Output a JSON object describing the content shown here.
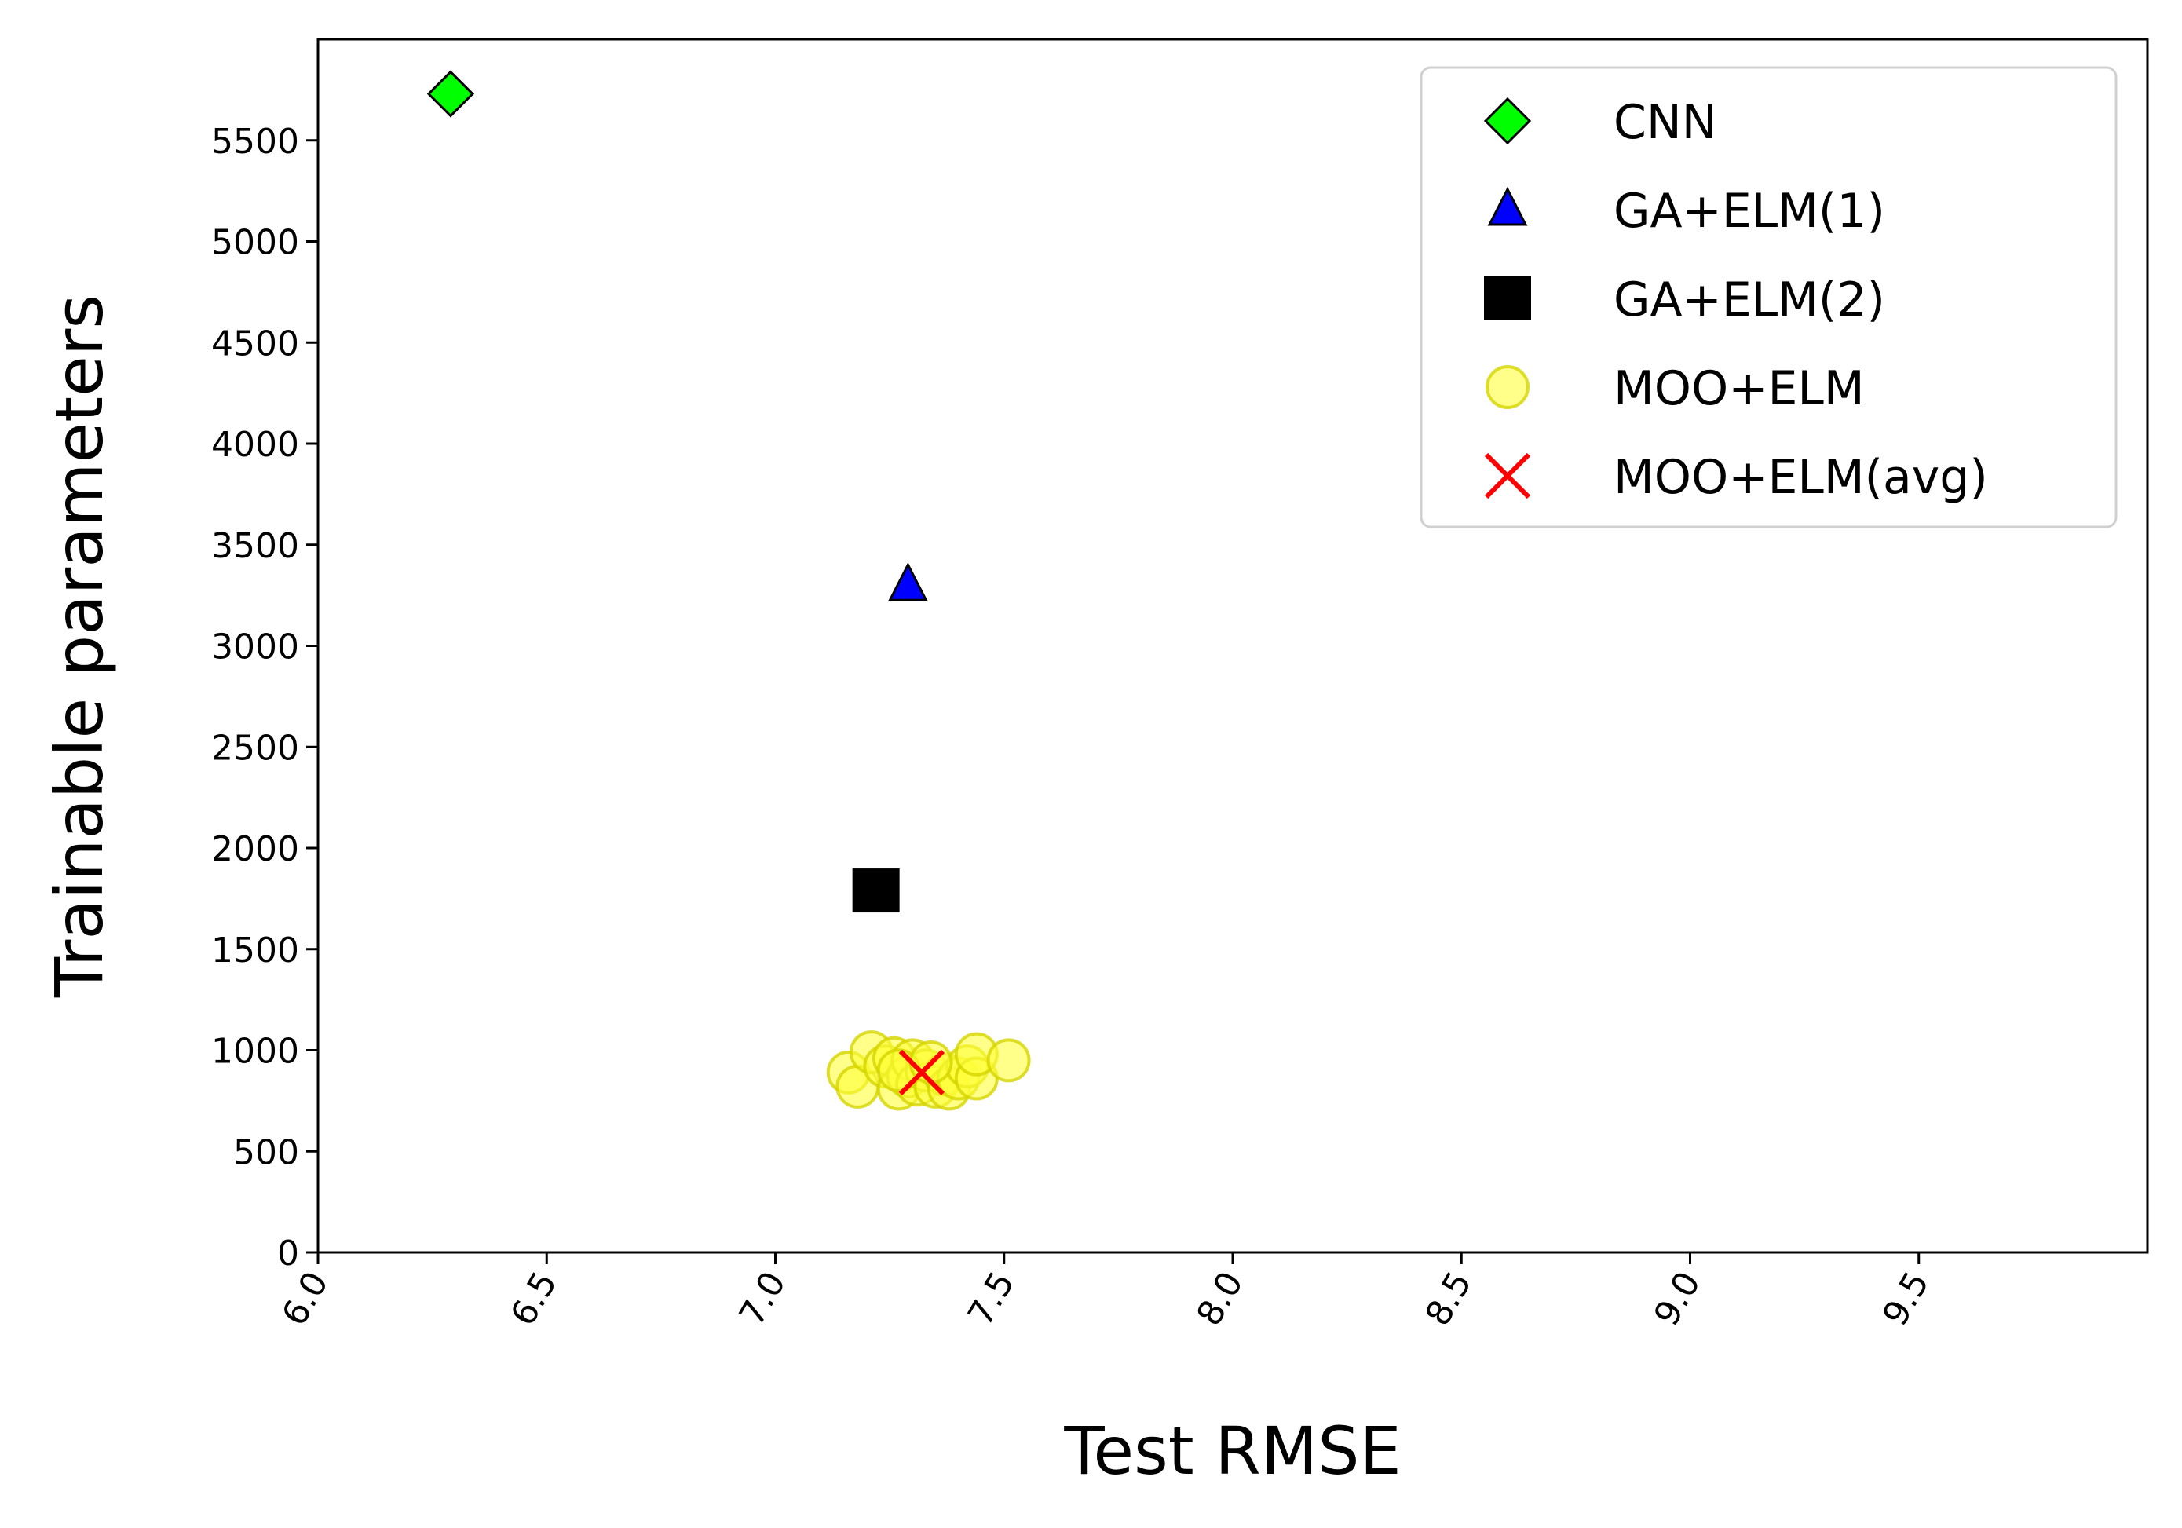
{
  "chart_data": {
    "type": "scatter",
    "xlabel": "Test RMSE",
    "ylabel": "Trainable parameters",
    "xlim": [
      6.0,
      10.0
    ],
    "ylim": [
      0,
      6000
    ],
    "xticks": [
      "6.0",
      "6.5",
      "7.0",
      "7.5",
      "8.0",
      "8.5",
      "9.0",
      "9.5"
    ],
    "yticks": [
      "0",
      "500",
      "1000",
      "1500",
      "2000",
      "2500",
      "3000",
      "3500",
      "4000",
      "4500",
      "5000",
      "5500"
    ],
    "grid": false,
    "legend_position": "top-right",
    "series": [
      {
        "name": "CNN",
        "marker": "diamond",
        "color": "#00ff00",
        "edge": "#000000",
        "points": [
          {
            "x": 6.29,
            "y": 5730
          }
        ]
      },
      {
        "name": "GA+ELM(1)",
        "marker": "triangle",
        "color": "#0000ff",
        "edge": "#000000",
        "points": [
          {
            "x": 7.29,
            "y": 3300
          }
        ]
      },
      {
        "name": "GA+ELM(2)",
        "marker": "square",
        "color": "#000000",
        "edge": "#000000",
        "points": [
          {
            "x": 7.22,
            "y": 1790
          }
        ]
      },
      {
        "name": "MOO+ELM",
        "marker": "circle",
        "color": "#ffff3c",
        "edge": "#d4d400",
        "points": [
          {
            "x": 7.16,
            "y": 890
          },
          {
            "x": 7.18,
            "y": 820
          },
          {
            "x": 7.21,
            "y": 990
          },
          {
            "x": 7.24,
            "y": 920
          },
          {
            "x": 7.26,
            "y": 960
          },
          {
            "x": 7.27,
            "y": 810
          },
          {
            "x": 7.29,
            "y": 870
          },
          {
            "x": 7.3,
            "y": 950
          },
          {
            "x": 7.31,
            "y": 830
          },
          {
            "x": 7.33,
            "y": 900
          },
          {
            "x": 7.35,
            "y": 820
          },
          {
            "x": 7.37,
            "y": 880
          },
          {
            "x": 7.38,
            "y": 810
          },
          {
            "x": 7.4,
            "y": 860
          },
          {
            "x": 7.42,
            "y": 920
          },
          {
            "x": 7.44,
            "y": 860
          },
          {
            "x": 7.44,
            "y": 980
          },
          {
            "x": 7.51,
            "y": 950
          },
          {
            "x": 7.27,
            "y": 900
          },
          {
            "x": 7.34,
            "y": 940
          }
        ]
      },
      {
        "name": "MOO+ELM(avg)",
        "marker": "x",
        "color": "#ff0000",
        "edge": "#ff0000",
        "points": [
          {
            "x": 7.32,
            "y": 890
          }
        ]
      }
    ]
  }
}
